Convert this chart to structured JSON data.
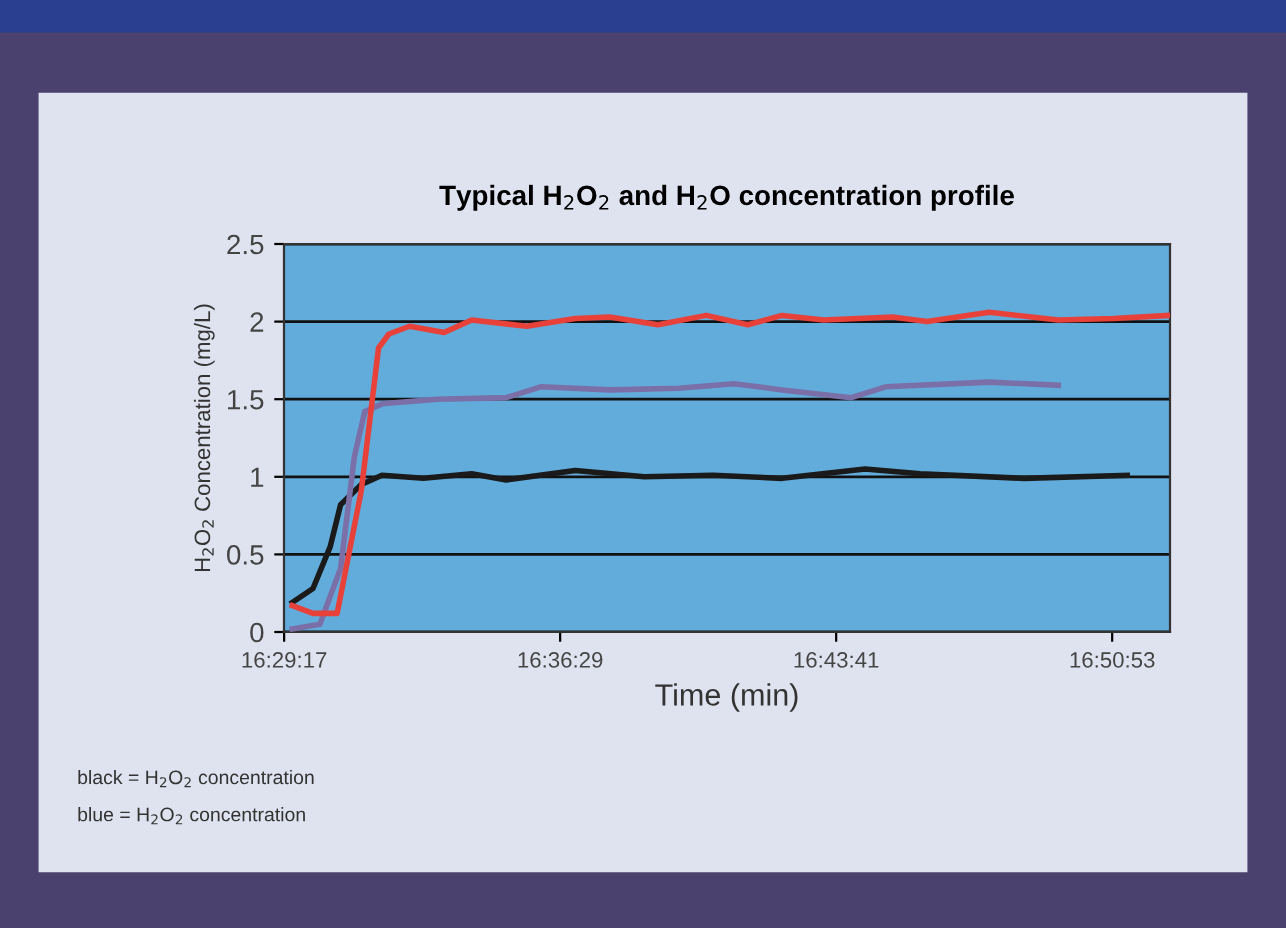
{
  "chart_data": {
    "type": "line",
    "title": "Typical H$_{2}$O$_{2}$ and H$_{2}$O concentration profile",
    "xlabel": "Time (min)",
    "ylabel": "H$_{2}$O$_{2}$ Concentration (mg/L)",
    "annotations": [
      "black = H$_{2}$O$_{2}$ concentration",
      "blue = H$_{2}$O$_{2}$ concentration"
    ],
    "series": [
      {
        "color": "#1a1a1a",
        "x": [
          16.4916,
          16.5006,
          16.5081,
          16.5126,
          16.5216,
          16.5306,
          16.5486,
          16.5696,
          16.5846,
          16.6146,
          16.6446,
          16.6746,
          16.7046,
          16.7406,
          16.7646,
          16.8096,
          16.8546
        ],
        "values": [
          0.19,
          0.28,
          0.55,
          0.82,
          0.95,
          1.01,
          0.99,
          1.02,
          0.98,
          1.04,
          1.0,
          1.01,
          0.99,
          1.05,
          1.02,
          0.99,
          1.01
        ]
      },
      {
        "color": "#7b6fa8",
        "x": [
          16.4916,
          16.5036,
          16.5126,
          16.5186,
          16.5231,
          16.5306,
          16.5546,
          16.5846,
          16.5996,
          16.6296,
          16.6596,
          16.6836,
          16.7046,
          16.7346,
          16.7496,
          16.7946,
          16.8246
        ],
        "values": [
          0.02,
          0.05,
          0.41,
          1.13,
          1.42,
          1.47,
          1.5,
          1.51,
          1.58,
          1.56,
          1.57,
          1.6,
          1.56,
          1.51,
          1.58,
          1.61,
          1.59
        ]
      },
      {
        "color": "#e8413a",
        "x": [
          16.4916,
          16.5006,
          16.5111,
          16.5216,
          16.5291,
          16.5336,
          16.5426,
          16.5576,
          16.5696,
          16.5936,
          16.6146,
          16.6296,
          16.6506,
          16.6716,
          16.6896,
          16.7046,
          16.7226,
          16.7526,
          16.7676,
          16.7946,
          16.8246,
          16.8486,
          16.8732
        ],
        "values": [
          0.17,
          0.12,
          0.12,
          0.91,
          1.83,
          1.92,
          1.97,
          1.93,
          2.01,
          1.97,
          2.02,
          2.03,
          1.98,
          2.04,
          1.98,
          2.04,
          2.01,
          2.03,
          2.0,
          2.06,
          2.01,
          2.02,
          2.04
        ]
      }
    ],
    "xlim": [
      16.488,
      16.8732
    ],
    "xticks": [
      {
        "value": 16.48806,
        "label": "16:29:17"
      },
      {
        "value": 16.60806,
        "label": "16:36:29"
      },
      {
        "value": 16.72806,
        "label": "16:43:41"
      },
      {
        "value": 16.84806,
        "label": "16:50:53"
      }
    ],
    "ylim": [
      0,
      2.5
    ],
    "yticks": [
      0,
      {
        "value": 0.5,
        "label": "0.5"
      },
      1,
      {
        "value": 1.5,
        "label": "1.5"
      },
      2,
      {
        "value": 2.5,
        "label": "2.5"
      }
    ],
    "grid": "y",
    "marker": "none",
    "line_style": "solid",
    "legend": false
  }
}
